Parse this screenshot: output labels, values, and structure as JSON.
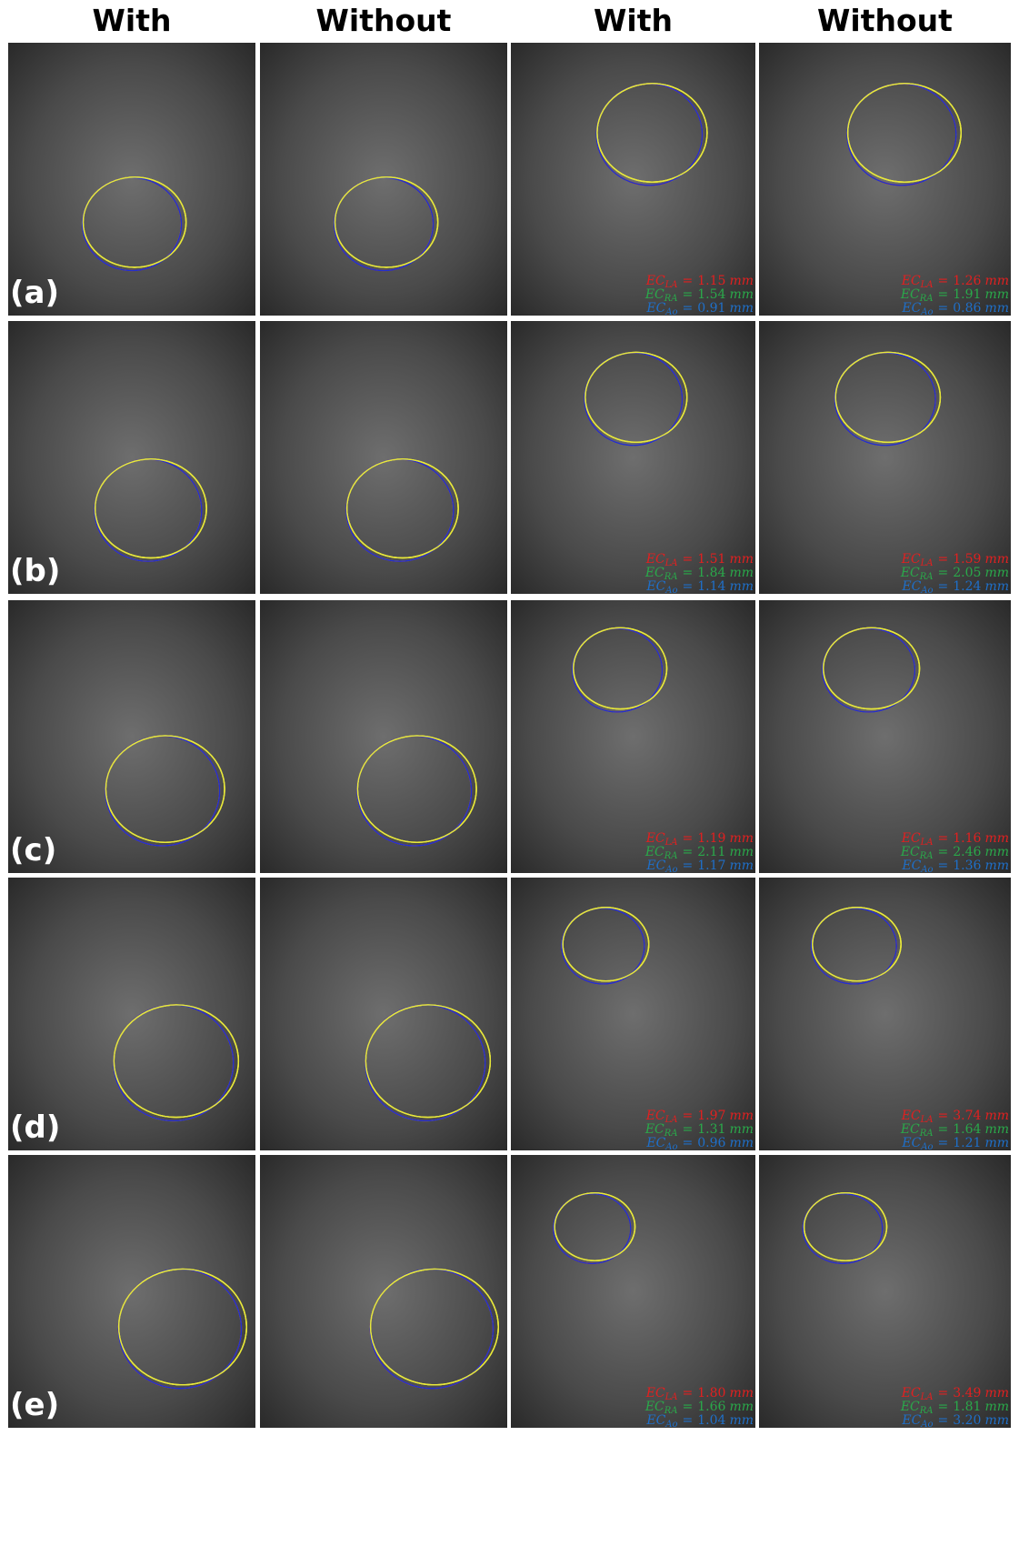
{
  "header": {
    "columns": [
      "With",
      "Without",
      "With",
      "Without"
    ]
  },
  "symbols": {
    "ec": "EC",
    "la": "LA",
    "ra": "RA",
    "ao": "Ao",
    "eq": "=",
    "unit": "mm"
  },
  "rows": [
    {
      "label": "(a)",
      "metrics": [
        {
          "la": "1.15",
          "ra": "1.54",
          "ao": "0.91"
        },
        {
          "la": "1.26",
          "ra": "1.91",
          "ao": "0.86"
        }
      ]
    },
    {
      "label": "(b)",
      "metrics": [
        {
          "la": "1.51",
          "ra": "1.84",
          "ao": "1.14"
        },
        {
          "la": "1.59",
          "ra": "2.05",
          "ao": "1.24"
        }
      ]
    },
    {
      "label": "(c)",
      "metrics": [
        {
          "la": "1.19",
          "ra": "2.11",
          "ao": "1.17"
        },
        {
          "la": "1.16",
          "ra": "2.46",
          "ao": "1.36"
        }
      ]
    },
    {
      "label": "(d)",
      "metrics": [
        {
          "la": "1.97",
          "ra": "1.31",
          "ao": "0.96"
        },
        {
          "la": "3.74",
          "ra": "1.64",
          "ao": "1.21"
        }
      ]
    },
    {
      "label": "(e)",
      "metrics": [
        {
          "la": "1.80",
          "ra": "1.66",
          "ao": "1.04"
        },
        {
          "la": "3.49",
          "ra": "1.81",
          "ao": "3.20"
        }
      ]
    }
  ]
}
